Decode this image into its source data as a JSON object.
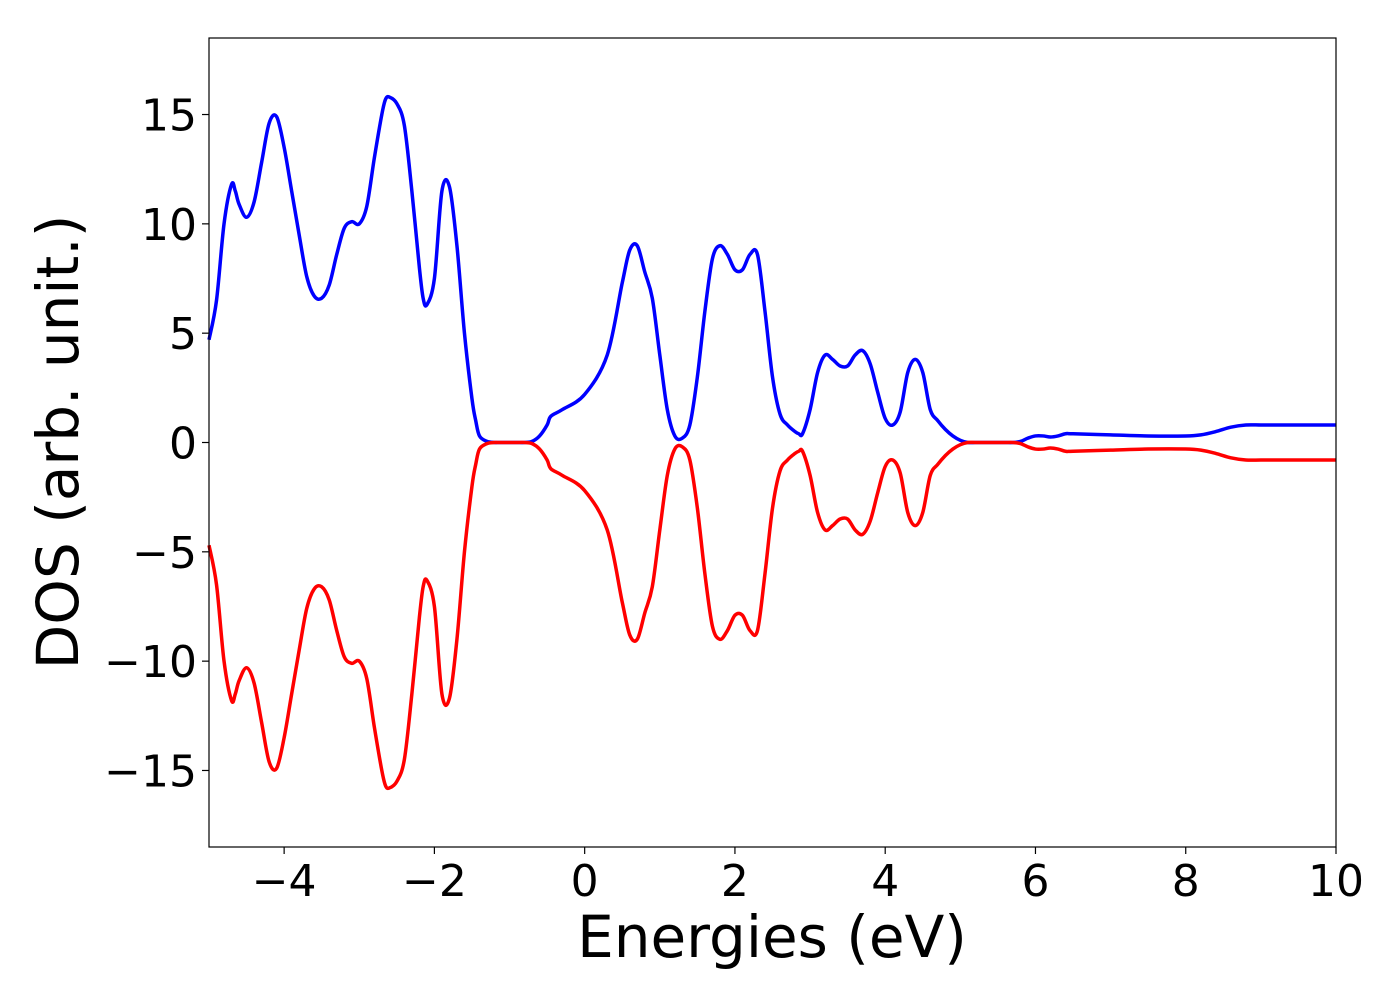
{
  "chart_data": {
    "type": "line",
    "title": "",
    "xlabel": "Energies (eV)",
    "ylabel": "DOS (arb. unit.)",
    "xlim": [
      -5,
      10
    ],
    "ylim": [
      -18.5,
      18.5
    ],
    "xticks": [
      -4,
      -2,
      0,
      2,
      4,
      6,
      8,
      10
    ],
    "yticks": [
      -15,
      -10,
      -5,
      0,
      5,
      10,
      15
    ],
    "xtick_labels": [
      "−4",
      "−2",
      "0",
      "2",
      "4",
      "6",
      "8",
      "10"
    ],
    "ytick_labels": [
      "−15",
      "−10",
      "−5",
      "0",
      "5",
      "10",
      "15"
    ],
    "grid": false,
    "legend": null,
    "series": [
      {
        "color": "#0000ff",
        "x": [
          -5.0,
          -4.9,
          -4.8,
          -4.7,
          -4.65,
          -4.6,
          -4.5,
          -4.4,
          -4.3,
          -4.2,
          -4.1,
          -4.0,
          -3.9,
          -3.8,
          -3.7,
          -3.6,
          -3.5,
          -3.4,
          -3.3,
          -3.2,
          -3.1,
          -3.0,
          -2.9,
          -2.8,
          -2.7,
          -2.65,
          -2.6,
          -2.5,
          -2.4,
          -2.3,
          -2.2,
          -2.15,
          -2.1,
          -2.0,
          -1.9,
          -1.8,
          -1.7,
          -1.6,
          -1.5,
          -1.45,
          -1.4,
          -1.3,
          -1.2,
          -1.15,
          -1.1,
          -1.0,
          -0.9,
          -0.8,
          -0.7,
          -0.6,
          -0.5,
          -0.45,
          -0.3,
          0.0,
          0.3,
          0.5,
          0.6,
          0.7,
          0.8,
          0.9,
          1.0,
          1.1,
          1.2,
          1.3,
          1.4,
          1.5,
          1.6,
          1.7,
          1.8,
          1.9,
          2.0,
          2.1,
          2.2,
          2.3,
          2.4,
          2.5,
          2.6,
          2.7,
          2.8,
          2.85,
          2.9,
          3.0,
          3.1,
          3.2,
          3.3,
          3.4,
          3.5,
          3.6,
          3.7,
          3.8,
          3.9,
          4.0,
          4.1,
          4.2,
          4.3,
          4.4,
          4.5,
          4.6,
          4.7,
          4.8,
          4.9,
          5.0,
          5.1,
          5.2,
          5.3,
          5.4,
          5.5,
          5.6,
          5.7,
          5.8,
          5.9,
          6.0,
          6.1,
          6.2,
          6.3,
          6.4,
          6.5,
          7.0,
          7.5,
          8.0,
          8.2,
          8.4,
          8.6,
          8.8,
          9.0,
          9.2,
          9.4,
          9.6,
          9.8,
          10.0
        ],
        "y": [
          4.7,
          6.5,
          10.0,
          11.8,
          11.5,
          10.9,
          10.3,
          11.0,
          12.8,
          14.6,
          14.9,
          13.5,
          11.5,
          9.5,
          7.6,
          6.7,
          6.6,
          7.2,
          8.6,
          9.8,
          10.1,
          10.0,
          10.8,
          13.0,
          15.0,
          15.7,
          15.8,
          15.5,
          14.5,
          11.5,
          8.0,
          6.6,
          6.3,
          7.5,
          11.5,
          11.7,
          9.0,
          5.0,
          2.0,
          1.0,
          0.3,
          0.05,
          0.0,
          0.0,
          0.0,
          0.0,
          0.0,
          0.0,
          0.05,
          0.3,
          0.8,
          1.2,
          1.5,
          2.2,
          4.0,
          7.3,
          8.8,
          9.0,
          7.8,
          6.6,
          4.0,
          1.5,
          0.3,
          0.2,
          0.8,
          3.0,
          6.0,
          8.4,
          9.0,
          8.6,
          7.9,
          7.9,
          8.6,
          8.6,
          6.0,
          3.0,
          1.3,
          0.8,
          0.5,
          0.4,
          0.4,
          1.5,
          3.2,
          4.0,
          3.8,
          3.5,
          3.5,
          4.0,
          4.2,
          3.6,
          2.3,
          1.1,
          0.8,
          1.4,
          3.2,
          3.8,
          3.2,
          1.5,
          1.0,
          0.6,
          0.3,
          0.1,
          0.0,
          0.0,
          0.0,
          0.0,
          0.0,
          0.0,
          0.0,
          0.05,
          0.2,
          0.3,
          0.3,
          0.25,
          0.3,
          0.4,
          0.4,
          0.35,
          0.3,
          0.3,
          0.35,
          0.5,
          0.7,
          0.8,
          0.8,
          0.8,
          0.8,
          0.8,
          0.8,
          0.8
        ]
      },
      {
        "color": "#ff0000",
        "x": [
          -5.0,
          -4.9,
          -4.8,
          -4.7,
          -4.65,
          -4.6,
          -4.5,
          -4.4,
          -4.3,
          -4.2,
          -4.1,
          -4.0,
          -3.9,
          -3.8,
          -3.7,
          -3.6,
          -3.5,
          -3.4,
          -3.3,
          -3.2,
          -3.1,
          -3.0,
          -2.9,
          -2.8,
          -2.7,
          -2.65,
          -2.6,
          -2.5,
          -2.4,
          -2.3,
          -2.2,
          -2.15,
          -2.1,
          -2.0,
          -1.9,
          -1.8,
          -1.7,
          -1.6,
          -1.5,
          -1.45,
          -1.4,
          -1.3,
          -1.2,
          -1.15,
          -1.1,
          -1.0,
          -0.9,
          -0.8,
          -0.7,
          -0.6,
          -0.5,
          -0.45,
          -0.3,
          0.0,
          0.3,
          0.5,
          0.6,
          0.7,
          0.8,
          0.9,
          1.0,
          1.1,
          1.2,
          1.3,
          1.4,
          1.5,
          1.6,
          1.7,
          1.8,
          1.9,
          2.0,
          2.1,
          2.2,
          2.3,
          2.4,
          2.5,
          2.6,
          2.7,
          2.8,
          2.85,
          2.9,
          3.0,
          3.1,
          3.2,
          3.3,
          3.4,
          3.5,
          3.6,
          3.7,
          3.8,
          3.9,
          4.0,
          4.1,
          4.2,
          4.3,
          4.4,
          4.5,
          4.6,
          4.7,
          4.8,
          4.9,
          5.0,
          5.1,
          5.2,
          5.3,
          5.4,
          5.5,
          5.6,
          5.7,
          5.8,
          5.9,
          6.0,
          6.1,
          6.2,
          6.3,
          6.4,
          6.5,
          7.0,
          7.5,
          8.0,
          8.2,
          8.4,
          8.6,
          8.8,
          9.0,
          9.2,
          9.4,
          9.6,
          9.8,
          10.0
        ],
        "y": [
          -4.7,
          -6.5,
          -10.0,
          -11.8,
          -11.5,
          -10.9,
          -10.3,
          -11.0,
          -12.8,
          -14.6,
          -14.9,
          -13.5,
          -11.5,
          -9.5,
          -7.6,
          -6.7,
          -6.6,
          -7.2,
          -8.6,
          -9.8,
          -10.1,
          -10.0,
          -10.8,
          -13.0,
          -15.0,
          -15.7,
          -15.8,
          -15.5,
          -14.5,
          -11.5,
          -8.0,
          -6.6,
          -6.3,
          -7.5,
          -11.5,
          -11.7,
          -9.0,
          -5.0,
          -2.0,
          -1.0,
          -0.3,
          -0.05,
          0.0,
          0.0,
          0.0,
          0.0,
          0.0,
          0.0,
          -0.05,
          -0.3,
          -0.8,
          -1.2,
          -1.5,
          -2.2,
          -4.0,
          -7.3,
          -8.8,
          -9.0,
          -7.8,
          -6.6,
          -4.0,
          -1.5,
          -0.3,
          -0.2,
          -0.8,
          -3.0,
          -6.0,
          -8.4,
          -9.0,
          -8.6,
          -7.9,
          -7.9,
          -8.6,
          -8.6,
          -6.0,
          -3.0,
          -1.3,
          -0.8,
          -0.5,
          -0.4,
          -0.4,
          -1.5,
          -3.2,
          -4.0,
          -3.8,
          -3.5,
          -3.5,
          -4.0,
          -4.2,
          -3.6,
          -2.3,
          -1.1,
          -0.8,
          -1.4,
          -3.2,
          -3.8,
          -3.2,
          -1.5,
          -1.0,
          -0.6,
          -0.3,
          -0.1,
          0.0,
          0.0,
          0.0,
          0.0,
          0.0,
          0.0,
          0.0,
          -0.05,
          -0.2,
          -0.3,
          -0.3,
          -0.25,
          -0.3,
          -0.4,
          -0.4,
          -0.35,
          -0.3,
          -0.3,
          -0.35,
          -0.5,
          -0.7,
          -0.8,
          -0.8,
          -0.8,
          -0.8,
          -0.8,
          -0.8,
          -0.8
        ]
      }
    ]
  }
}
